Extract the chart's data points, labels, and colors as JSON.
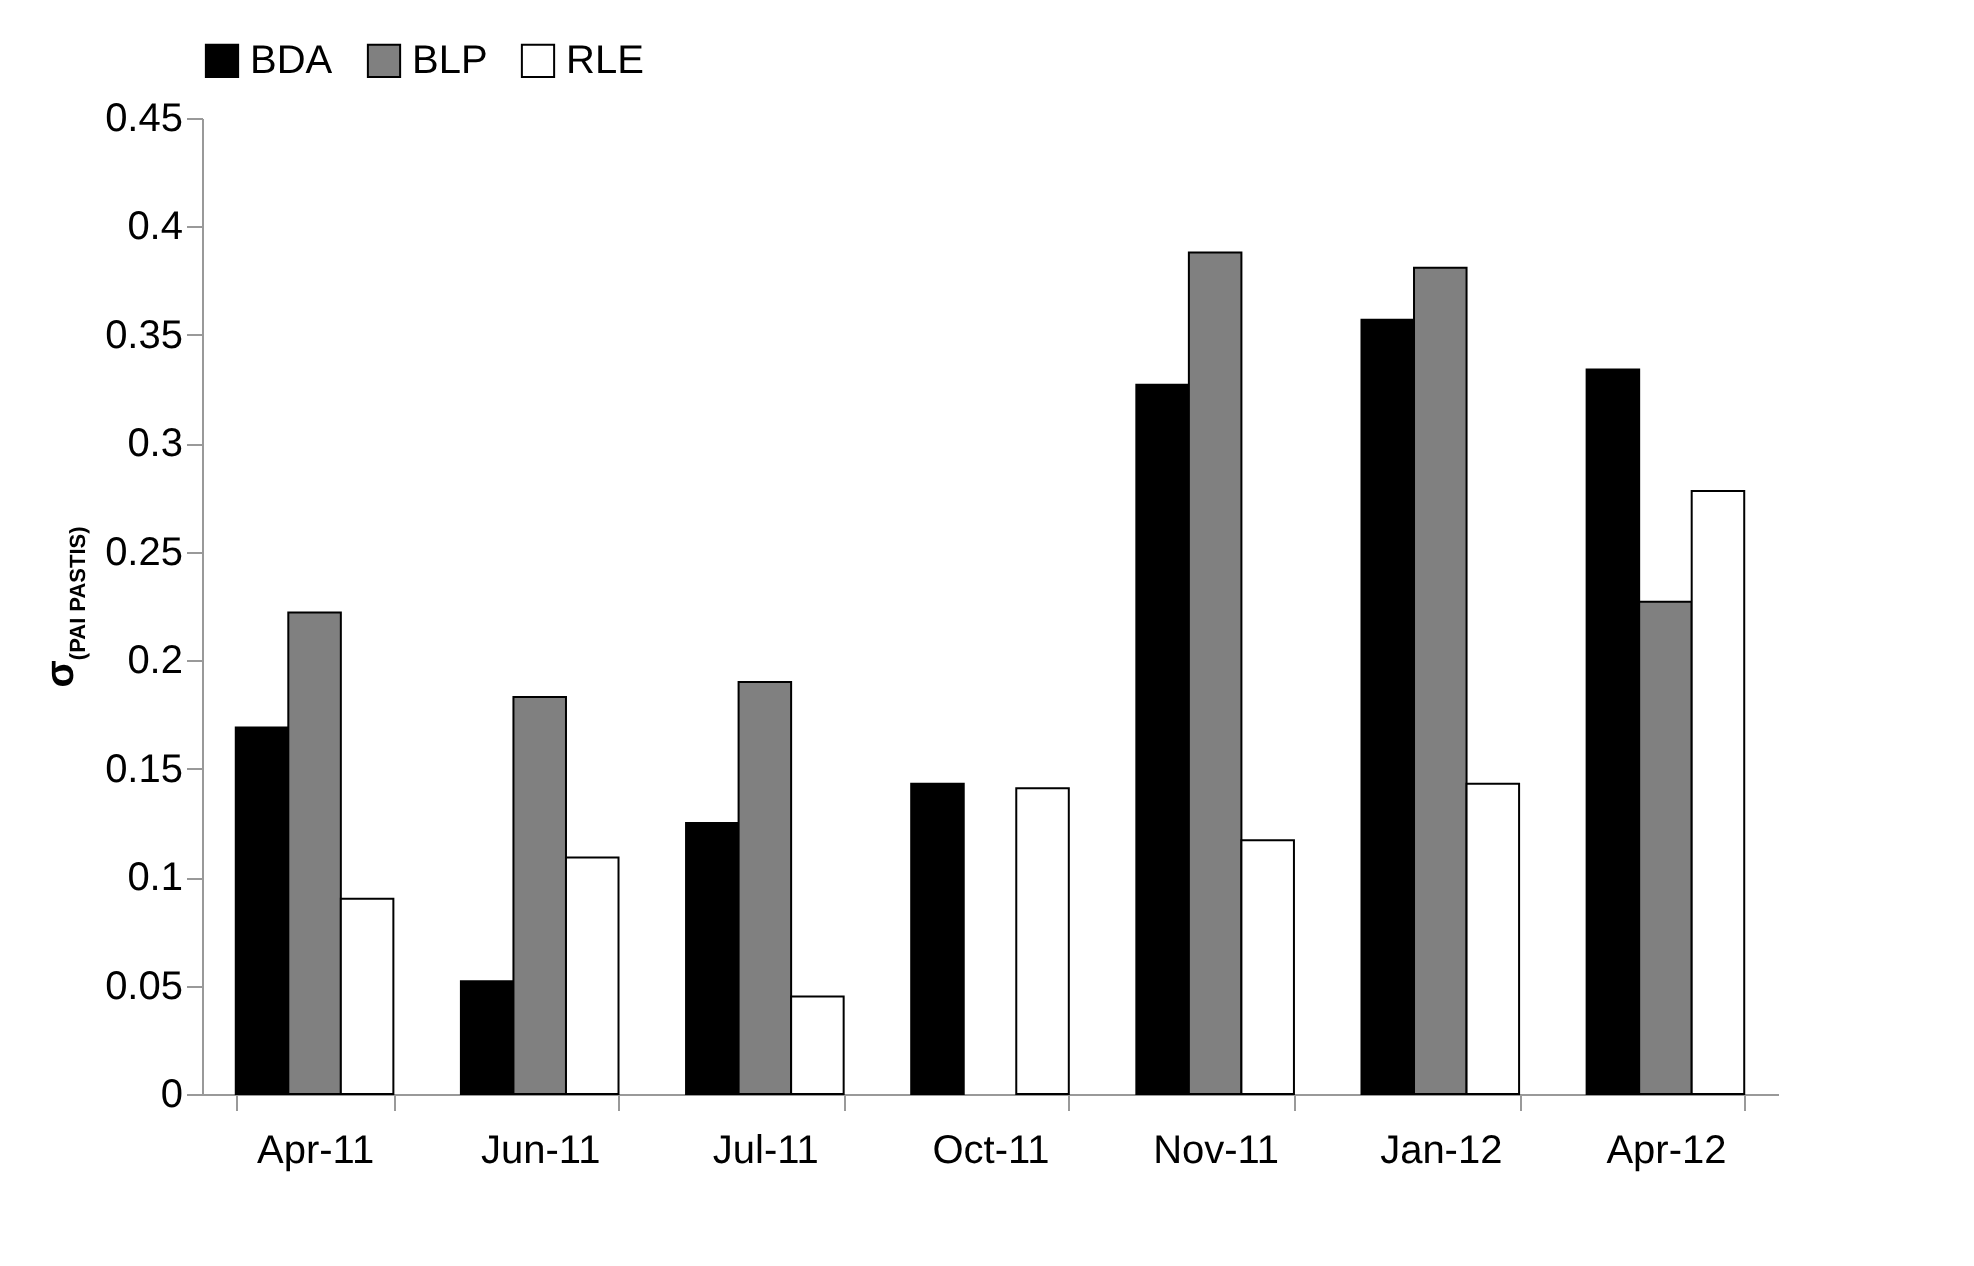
{
  "chart_data": {
    "type": "bar",
    "ylabel": "σ$_{(PAI PASTIS)}$",
    "categories": [
      "Apr-11",
      "Jun-11",
      "Jul-11",
      "Oct-11",
      "Nov-11",
      "Jan-12",
      "Apr-12"
    ],
    "series": [
      {
        "name": "BDA",
        "color": "#000000",
        "values": [
          0.169,
          0.052,
          0.125,
          0.143,
          0.327,
          0.357,
          0.334
        ]
      },
      {
        "name": "BLP",
        "color": "#808080",
        "values": [
          0.222,
          0.183,
          0.19,
          null,
          0.388,
          0.381,
          0.227
        ]
      },
      {
        "name": "RLE",
        "color": "#ffffff",
        "values": [
          0.09,
          0.109,
          0.045,
          0.141,
          0.117,
          0.143,
          0.278
        ]
      }
    ],
    "ylim": [
      0,
      0.45
    ],
    "yticks": [
      0,
      0.05,
      0.1,
      0.15,
      0.2,
      0.25,
      0.3,
      0.35,
      0.4,
      0.45
    ],
    "grid": false,
    "legend": "top"
  }
}
